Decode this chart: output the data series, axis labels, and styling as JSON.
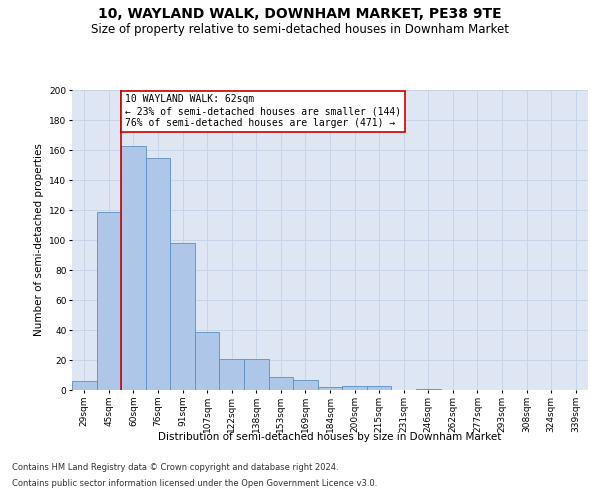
{
  "title": "10, WAYLAND WALK, DOWNHAM MARKET, PE38 9TE",
  "subtitle": "Size of property relative to semi-detached houses in Downham Market",
  "xlabel": "Distribution of semi-detached houses by size in Downham Market",
  "ylabel": "Number of semi-detached properties",
  "footer_line1": "Contains HM Land Registry data © Crown copyright and database right 2024.",
  "footer_line2": "Contains public sector information licensed under the Open Government Licence v3.0.",
  "bar_labels": [
    "29sqm",
    "45sqm",
    "60sqm",
    "76sqm",
    "91sqm",
    "107sqm",
    "122sqm",
    "138sqm",
    "153sqm",
    "169sqm",
    "184sqm",
    "200sqm",
    "215sqm",
    "231sqm",
    "246sqm",
    "262sqm",
    "277sqm",
    "293sqm",
    "308sqm",
    "324sqm",
    "339sqm"
  ],
  "bar_values": [
    6,
    119,
    163,
    155,
    98,
    39,
    21,
    21,
    9,
    7,
    2,
    3,
    3,
    0,
    1,
    0,
    0,
    0,
    0,
    0,
    0
  ],
  "bar_color": "#aec6e8",
  "bar_edge_color": "#5a8fc2",
  "property_line_x": 1.5,
  "annotation_label": "10 WAYLAND WALK: 62sqm",
  "annotation_smaller": "← 23% of semi-detached houses are smaller (144)",
  "annotation_larger": "76% of semi-detached houses are larger (471) →",
  "vline_color": "#cc0000",
  "annotation_box_edge_color": "#cc0000",
  "ylim": [
    0,
    200
  ],
  "yticks": [
    0,
    20,
    40,
    60,
    80,
    100,
    120,
    140,
    160,
    180,
    200
  ],
  "grid_color": "#c8d4e8",
  "bg_color": "#dde6f2",
  "title_fontsize": 10,
  "subtitle_fontsize": 8.5,
  "axis_label_fontsize": 7.5,
  "tick_fontsize": 6.5,
  "annotation_fontsize": 7,
  "footer_fontsize": 6
}
